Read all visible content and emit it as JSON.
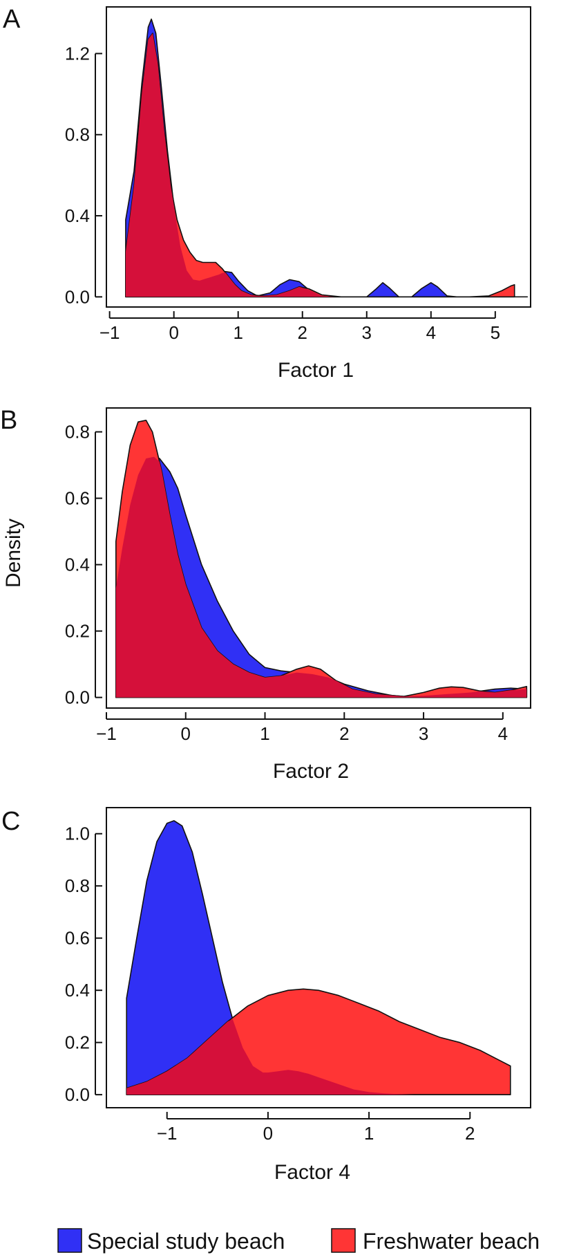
{
  "figure": {
    "ylabel": "Density",
    "colors": {
      "series_a": "#3030f5",
      "series_b": "#ff3535",
      "overlap": "#d5103a",
      "axis": "#111111"
    },
    "legend": [
      {
        "label": "Special study beach",
        "color": "#3030f5"
      },
      {
        "label": "Freshwater beach",
        "color": "#ff3535"
      }
    ]
  },
  "chart_data": [
    {
      "panel": "A",
      "type": "area",
      "xlabel": "Factor 1",
      "xlim": [
        -1.05,
        5.55
      ],
      "ylim": [
        -0.05,
        1.43
      ],
      "xticks": [
        -1,
        0,
        1,
        2,
        3,
        4,
        5
      ],
      "yticks": [
        0.0,
        0.4,
        0.8,
        1.2
      ],
      "ytick_labels": [
        "0.0",
        "0.4",
        "0.8",
        "1.2"
      ],
      "xtick_labels": [
        "−1",
        "0",
        "1",
        "2",
        "3",
        "4",
        "5"
      ],
      "series": [
        {
          "name": "Special study beach",
          "x": [
            -0.75,
            -0.62,
            -0.5,
            -0.4,
            -0.35,
            -0.28,
            -0.2,
            -0.1,
            0.0,
            0.1,
            0.2,
            0.3,
            0.4,
            0.5,
            0.6,
            0.7,
            0.8,
            0.9,
            1.0,
            1.15,
            1.3,
            1.5,
            1.65,
            1.8,
            1.95,
            2.1,
            2.3,
            2.5,
            2.8,
            3.0,
            3.15,
            3.25,
            3.35,
            3.5,
            3.7,
            3.85,
            4.0,
            4.1,
            4.25,
            4.4,
            4.8,
            5.2,
            5.5
          ],
          "y": [
            0.38,
            0.62,
            1.05,
            1.33,
            1.37,
            1.3,
            1.05,
            0.72,
            0.45,
            0.25,
            0.13,
            0.085,
            0.08,
            0.09,
            0.1,
            0.11,
            0.125,
            0.12,
            0.08,
            0.03,
            0.005,
            0.02,
            0.06,
            0.085,
            0.075,
            0.035,
            0.005,
            0.0,
            0.0,
            0.0,
            0.04,
            0.07,
            0.045,
            0.0,
            0.0,
            0.04,
            0.07,
            0.05,
            0.005,
            0.0,
            0.0,
            0.0,
            0.0
          ]
        },
        {
          "name": "Freshwater beach",
          "x": [
            -0.75,
            -0.62,
            -0.5,
            -0.4,
            -0.33,
            -0.25,
            -0.15,
            -0.05,
            0.05,
            0.15,
            0.25,
            0.35,
            0.45,
            0.55,
            0.65,
            0.75,
            0.85,
            0.95,
            1.05,
            1.2,
            1.4,
            1.6,
            1.8,
            1.95,
            2.1,
            2.3,
            2.6,
            3.0,
            4.0,
            4.6,
            4.9,
            5.1,
            5.25,
            5.3
          ],
          "y": [
            0.22,
            0.55,
            1.0,
            1.27,
            1.3,
            1.15,
            0.82,
            0.55,
            0.38,
            0.28,
            0.22,
            0.18,
            0.17,
            0.17,
            0.17,
            0.14,
            0.1,
            0.06,
            0.03,
            0.01,
            0.005,
            0.01,
            0.03,
            0.05,
            0.04,
            0.01,
            0.0,
            0.0,
            0.0,
            0.0,
            0.005,
            0.03,
            0.055,
            0.06
          ]
        }
      ]
    },
    {
      "panel": "B",
      "type": "area",
      "xlabel": "Factor 2",
      "xlim": [
        -1.0,
        4.35
      ],
      "ylim": [
        -0.032,
        0.872
      ],
      "xticks": [
        -1,
        0,
        1,
        2,
        3,
        4
      ],
      "yticks": [
        0.0,
        0.2,
        0.4,
        0.6,
        0.8
      ],
      "ytick_labels": [
        "0.0",
        "0.2",
        "0.4",
        "0.6",
        "0.8"
      ],
      "xtick_labels": [
        "−1",
        "0",
        "1",
        "2",
        "3",
        "4"
      ],
      "series": [
        {
          "name": "Special study beach",
          "x": [
            -0.88,
            -0.8,
            -0.7,
            -0.6,
            -0.5,
            -0.4,
            -0.33,
            -0.2,
            -0.1,
            0.0,
            0.2,
            0.4,
            0.6,
            0.8,
            1.0,
            1.2,
            1.4,
            1.6,
            1.8,
            2.0,
            2.3,
            2.6,
            2.75,
            3.0,
            3.3,
            3.6,
            3.9,
            4.1,
            4.3
          ],
          "y": [
            0.33,
            0.45,
            0.58,
            0.67,
            0.72,
            0.725,
            0.72,
            0.68,
            0.63,
            0.55,
            0.4,
            0.29,
            0.2,
            0.13,
            0.09,
            0.08,
            0.075,
            0.07,
            0.06,
            0.04,
            0.02,
            0.006,
            0.003,
            0.005,
            0.01,
            0.015,
            0.025,
            0.028,
            0.025
          ]
        },
        {
          "name": "Freshwater beach",
          "x": [
            -0.88,
            -0.8,
            -0.7,
            -0.6,
            -0.5,
            -0.42,
            -0.3,
            -0.2,
            -0.1,
            0.0,
            0.2,
            0.4,
            0.6,
            0.8,
            1.0,
            1.2,
            1.4,
            1.55,
            1.7,
            1.9,
            2.1,
            2.4,
            2.75,
            3.0,
            3.2,
            3.35,
            3.5,
            3.7,
            3.9,
            4.1,
            4.3
          ],
          "y": [
            0.47,
            0.62,
            0.76,
            0.83,
            0.835,
            0.8,
            0.68,
            0.55,
            0.43,
            0.34,
            0.21,
            0.14,
            0.1,
            0.075,
            0.06,
            0.065,
            0.085,
            0.095,
            0.085,
            0.05,
            0.025,
            0.01,
            0.003,
            0.015,
            0.028,
            0.032,
            0.03,
            0.02,
            0.015,
            0.022,
            0.033
          ]
        }
      ]
    },
    {
      "panel": "C",
      "type": "area",
      "xlabel": "Factor 4",
      "xlim": [
        -1.6,
        2.6
      ],
      "ylim": [
        -0.05,
        1.1
      ],
      "xticks": [
        -1,
        0,
        1,
        2
      ],
      "yticks": [
        0.0,
        0.2,
        0.4,
        0.6,
        0.8,
        1.0
      ],
      "ytick_labels": [
        "0.0",
        "0.2",
        "0.4",
        "0.6",
        "0.8",
        "1.0"
      ],
      "xtick_labels": [
        "−1",
        "0",
        "1",
        "2"
      ],
      "series": [
        {
          "name": "Special study beach",
          "x": [
            -1.4,
            -1.3,
            -1.2,
            -1.1,
            -1.0,
            -0.93,
            -0.85,
            -0.75,
            -0.65,
            -0.55,
            -0.45,
            -0.35,
            -0.25,
            -0.15,
            -0.05,
            0.0,
            0.1,
            0.2,
            0.3,
            0.4,
            0.55,
            0.7,
            0.85,
            1.0,
            1.15,
            1.3,
            1.45,
            1.6,
            2.0,
            2.4
          ],
          "y": [
            0.37,
            0.6,
            0.82,
            0.97,
            1.04,
            1.05,
            1.03,
            0.93,
            0.77,
            0.6,
            0.43,
            0.29,
            0.18,
            0.11,
            0.085,
            0.085,
            0.09,
            0.095,
            0.09,
            0.08,
            0.06,
            0.04,
            0.02,
            0.01,
            0.005,
            0.002,
            0.0,
            0.0,
            0.0,
            0.0
          ]
        },
        {
          "name": "Freshwater beach",
          "x": [
            -1.4,
            -1.2,
            -1.0,
            -0.8,
            -0.6,
            -0.4,
            -0.2,
            0.0,
            0.2,
            0.35,
            0.5,
            0.7,
            0.9,
            1.1,
            1.3,
            1.5,
            1.7,
            1.9,
            2.1,
            2.3,
            2.4
          ],
          "y": [
            0.025,
            0.05,
            0.09,
            0.14,
            0.21,
            0.28,
            0.34,
            0.38,
            0.4,
            0.405,
            0.4,
            0.38,
            0.35,
            0.32,
            0.28,
            0.25,
            0.22,
            0.2,
            0.17,
            0.13,
            0.11
          ]
        }
      ]
    }
  ]
}
